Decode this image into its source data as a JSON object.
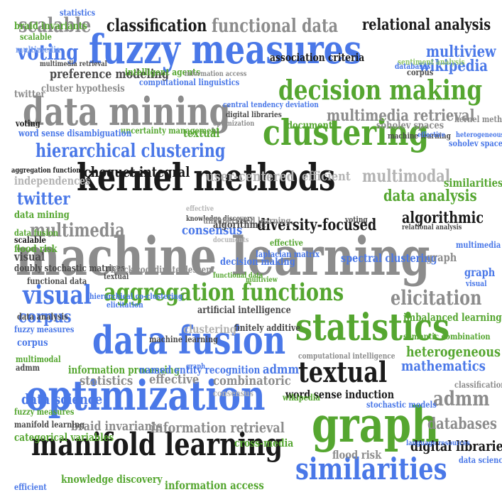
{
  "cloud": {
    "title": "",
    "words": [
      {
        "text": "machine learning",
        "color": "grey"
      },
      {
        "text": "kernel methods",
        "color": "black"
      },
      {
        "text": "fuzzy measures",
        "color": "blue"
      },
      {
        "text": "data mining",
        "color": "grey"
      },
      {
        "text": "clustering",
        "color": "green"
      },
      {
        "text": "decision making",
        "color": "green"
      },
      {
        "text": "data fusion",
        "color": "blue"
      },
      {
        "text": "optimization",
        "color": "blue"
      },
      {
        "text": "statistics",
        "color": "green"
      },
      {
        "text": "graph",
        "color": "green"
      },
      {
        "text": "manifold learning",
        "color": "black"
      },
      {
        "text": "similarities",
        "color": "blue"
      },
      {
        "text": "aggregation functions",
        "color": "green"
      },
      {
        "text": "visual",
        "color": "blue"
      },
      {
        "text": "hierarchical clustering",
        "color": "blue"
      },
      {
        "text": "textual",
        "color": "black"
      },
      {
        "text": "classification",
        "color": "black"
      },
      {
        "text": "functional data",
        "color": "grey"
      },
      {
        "text": "relational analysis",
        "color": "black"
      },
      {
        "text": "voting",
        "color": "blue"
      },
      {
        "text": "scalable",
        "color": "grey"
      },
      {
        "text": "multiview",
        "color": "blue"
      },
      {
        "text": "wikipedia",
        "color": "blue"
      },
      {
        "text": "preference modeling",
        "color": "dark"
      },
      {
        "text": "choquet integral",
        "color": "black"
      },
      {
        "text": "twitter",
        "color": "blue"
      },
      {
        "text": "multimedia",
        "color": "grey"
      },
      {
        "text": "diversity-focused",
        "color": "black"
      },
      {
        "text": "data analysis",
        "color": "green"
      },
      {
        "text": "algorithmic",
        "color": "black"
      },
      {
        "text": "consensus",
        "color": "blue"
      },
      {
        "text": "elicitation",
        "color": "grey"
      },
      {
        "text": "corpus",
        "color": "blue"
      },
      {
        "text": "heterogeneous",
        "color": "green"
      },
      {
        "text": "mathematics",
        "color": "blue"
      },
      {
        "text": "admm",
        "color": "grey"
      },
      {
        "text": "data science",
        "color": "blue"
      },
      {
        "text": "information processing",
        "color": "green"
      },
      {
        "text": "named entity recognition",
        "color": "blue"
      },
      {
        "text": "effective",
        "color": "grey"
      },
      {
        "text": "braid invariants",
        "color": "grey"
      },
      {
        "text": "information retrieval",
        "color": "grey"
      },
      {
        "text": "categorical variables",
        "color": "green"
      },
      {
        "text": "cross-media",
        "color": "green"
      },
      {
        "text": "digital libraries",
        "color": "black"
      },
      {
        "text": "knowledge discovery",
        "color": "green"
      },
      {
        "text": "information access",
        "color": "green"
      },
      {
        "text": "word sense induction",
        "color": "black"
      },
      {
        "text": "databases",
        "color": "grey"
      },
      {
        "text": "flood risk",
        "color": "grey"
      },
      {
        "text": "multimedia retrieval",
        "color": "grey"
      },
      {
        "text": "documents",
        "color": "green"
      },
      {
        "text": "soholev spaces",
        "color": "grey"
      },
      {
        "text": "uncertainty management",
        "color": "green"
      },
      {
        "text": "word sense disambiguation",
        "color": "blue"
      },
      {
        "text": "user-centered",
        "color": "lgrey"
      },
      {
        "text": "efficient",
        "color": "lgrey"
      },
      {
        "text": "multimodal",
        "color": "lgrey"
      },
      {
        "text": "similarities",
        "color": "green"
      },
      {
        "text": "independences",
        "color": "lgrey"
      },
      {
        "text": "aggregation functions",
        "color": "black"
      },
      {
        "text": "association criteria",
        "color": "black"
      },
      {
        "text": "cluster hypothesis",
        "color": "grey"
      },
      {
        "text": "optimization",
        "color": "grey"
      },
      {
        "text": "spectral clustering",
        "color": "blue"
      },
      {
        "text": "laplacian matrix",
        "color": "blue"
      },
      {
        "text": "artificial intelligence",
        "color": "dark"
      },
      {
        "text": "finitely additive",
        "color": "dark"
      },
      {
        "text": "hierarchical co-clustering",
        "color": "blue"
      },
      {
        "text": "clustering",
        "color": "lgrey"
      },
      {
        "text": "elicitation",
        "color": "blue"
      },
      {
        "text": "imbalanced learning",
        "color": "green"
      },
      {
        "text": "computational intelligence",
        "color": "grey"
      },
      {
        "text": "semantic combination",
        "color": "green"
      },
      {
        "text": "doubly stochastic matrices",
        "color": "dark"
      },
      {
        "text": "block coordinate descent",
        "color": "grey"
      },
      {
        "text": "functional data",
        "color": "dark"
      },
      {
        "text": "combinatoric",
        "color": "grey"
      },
      {
        "text": "statistics",
        "color": "grey"
      },
      {
        "text": "language resources",
        "color": "blue"
      },
      {
        "text": "stochastic models",
        "color": "blue"
      },
      {
        "text": "wikipedia",
        "color": "green"
      },
      {
        "text": "effective",
        "color": "green"
      },
      {
        "text": "admm",
        "color": "blue"
      },
      {
        "text": "decision making",
        "color": "blue"
      },
      {
        "text": "knowledge discovery",
        "color": "dark"
      },
      {
        "text": "unsupervised learning",
        "color": "grey"
      },
      {
        "text": "relational analysis",
        "color": "dark"
      },
      {
        "text": "textual",
        "color": "green"
      },
      {
        "text": "machine learning",
        "color": "dark"
      },
      {
        "text": "graph",
        "color": "grey"
      },
      {
        "text": "fuzzy measures",
        "color": "blue"
      },
      {
        "text": "data fusion",
        "color": "green"
      },
      {
        "text": "multimedia retrieval",
        "color": "dark"
      },
      {
        "text": "intelligent agents",
        "color": "green"
      },
      {
        "text": "computational linguistics",
        "color": "blue"
      },
      {
        "text": "central tendency deviation",
        "color": "blue"
      },
      {
        "text": "digital libraries",
        "color": "dark"
      },
      {
        "text": "sentiment analysis",
        "color": "lgreen"
      },
      {
        "text": "information access",
        "color": "grey"
      },
      {
        "text": "databases",
        "color": "blue"
      },
      {
        "text": "corpus",
        "color": "dark"
      },
      {
        "text": "data mining",
        "color": "green"
      },
      {
        "text": "twitter",
        "color": "grey"
      },
      {
        "text": "classification",
        "color": "grey"
      },
      {
        "text": "data science",
        "color": "blue"
      },
      {
        "text": "flood risk",
        "color": "green"
      },
      {
        "text": "scalable",
        "color": "black"
      },
      {
        "text": "visual",
        "color": "dark"
      },
      {
        "text": "textual",
        "color": "dark"
      },
      {
        "text": "graph",
        "color": "blue"
      },
      {
        "text": "visual",
        "color": "blue"
      },
      {
        "text": "multimedia",
        "color": "blue"
      },
      {
        "text": "heterogeneous",
        "color": "blue"
      },
      {
        "text": "voting",
        "color": "dark"
      },
      {
        "text": "multimodal",
        "color": "green"
      },
      {
        "text": "admm",
        "color": "dark"
      },
      {
        "text": "corpus",
        "color": "blue"
      },
      {
        "text": "data analysis",
        "color": "dark"
      },
      {
        "text": "fuzzy measures",
        "color": "green"
      },
      {
        "text": "manifold learning",
        "color": "dark"
      },
      {
        "text": "efficient",
        "color": "blue"
      },
      {
        "text": "braid invariants",
        "color": "green"
      },
      {
        "text": "algorithmic",
        "color": "dark"
      },
      {
        "text": "effective",
        "color": "lgrey"
      },
      {
        "text": "graph",
        "color": "blue"
      },
      {
        "text": "statistics",
        "color": "blue"
      },
      {
        "text": "effective",
        "color": "blue"
      },
      {
        "text": "soholev spaces",
        "color": "blue"
      },
      {
        "text": "machine learning",
        "color": "dark"
      },
      {
        "text": "voting",
        "color": "black"
      },
      {
        "text": "consensus",
        "color": "lgrey"
      },
      {
        "text": "scalable",
        "color": "green"
      },
      {
        "text": "documents",
        "color": "lgrey"
      },
      {
        "text": "functional data",
        "color": "green"
      },
      {
        "text": "kernel methods",
        "color": "grey"
      },
      {
        "text": "multimedia",
        "color": "lblue"
      },
      {
        "text": "multiview",
        "color": "green"
      },
      {
        "text": "data fusion",
        "color": "grey"
      },
      {
        "text": "optimization",
        "color": "blue"
      }
    ]
  }
}
